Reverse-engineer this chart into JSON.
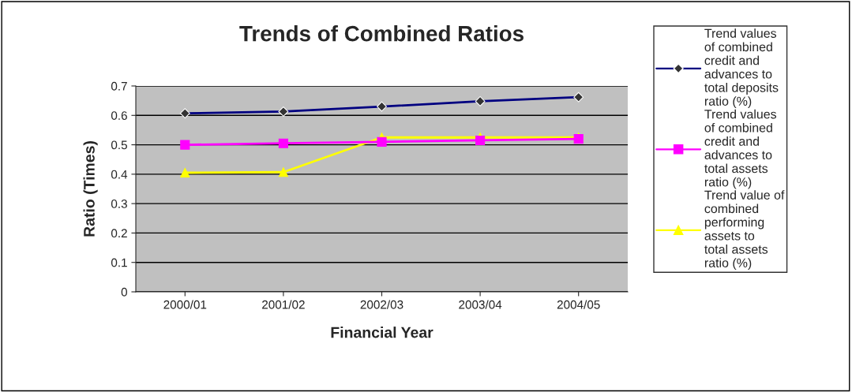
{
  "chart_data": {
    "type": "line",
    "title": "Trends of Combined Ratios",
    "xlabel": "Financial Year",
    "ylabel": "Ratio (Times)",
    "categories": [
      "2000/01",
      "2001/02",
      "2002/03",
      "2003/04",
      "2004/05"
    ],
    "series": [
      {
        "name": "Trend values of combined credit and advances to total deposits ratio (%)",
        "color": "#000080",
        "marker": "diamond",
        "values": [
          0.607,
          0.613,
          0.63,
          0.648,
          0.662
        ]
      },
      {
        "name": "Trend values of combined credit and advances to total assets ratio (%)",
        "color": "#ff00ff",
        "marker": "square",
        "values": [
          0.5,
          0.505,
          0.51,
          0.515,
          0.52
        ]
      },
      {
        "name": "Trend value of combined performing assets to total assets ratio (%)",
        "color": "#ffff00",
        "marker": "triangle",
        "values": [
          0.405,
          0.407,
          0.525,
          0.525,
          0.525
        ]
      }
    ],
    "ylim": [
      0,
      0.7
    ],
    "yticks": [
      0,
      0.1,
      0.2,
      0.3,
      0.4,
      0.5,
      0.6,
      0.7
    ],
    "grid": "y",
    "legend": "right"
  }
}
